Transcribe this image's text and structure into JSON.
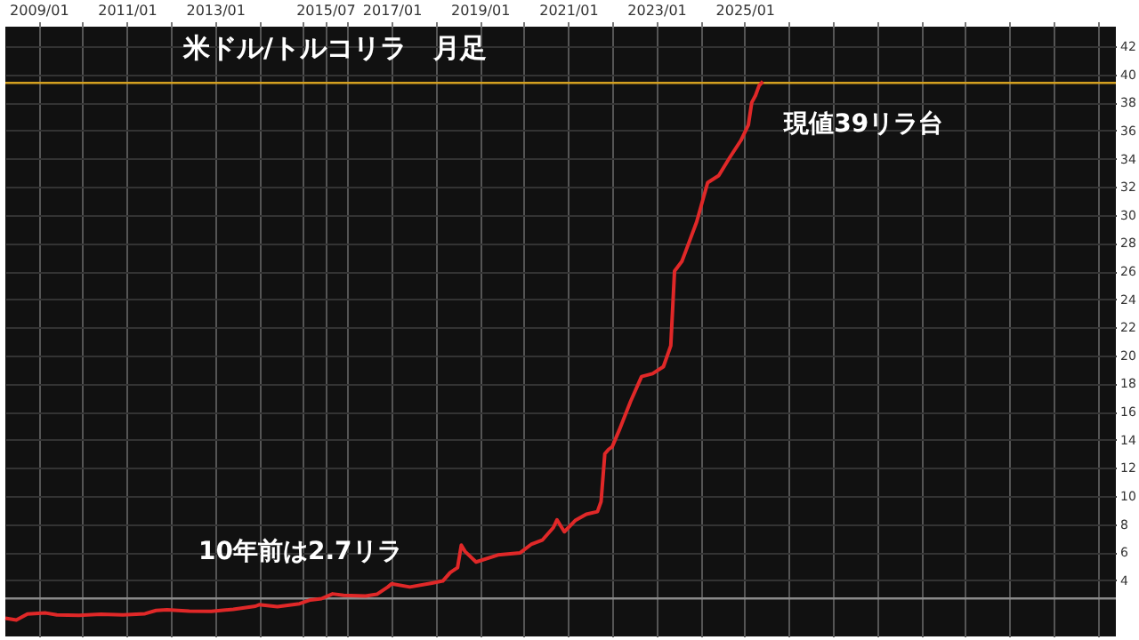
{
  "chart_data": {
    "type": "line",
    "title": "米ドル/トルコリラ　月足",
    "xlim": [
      "2008-04",
      "2033-06"
    ],
    "xticks": [
      {
        "value": "2009-01",
        "label": "2009/01"
      },
      {
        "value": "2010-01",
        "label": null
      },
      {
        "value": "2011-01",
        "label": "2011/01"
      },
      {
        "value": "2012-01",
        "label": null
      },
      {
        "value": "2013-01",
        "label": "2013/01"
      },
      {
        "value": "2014-01",
        "label": null
      },
      {
        "value": "2015-01",
        "label": null
      },
      {
        "value": "2015-07",
        "label": "2015/07"
      },
      {
        "value": "2016-01",
        "label": null
      },
      {
        "value": "2017-01",
        "label": "2017/01"
      },
      {
        "value": "2018-01",
        "label": null
      },
      {
        "value": "2019-01",
        "label": "2019/01"
      },
      {
        "value": "2020-01",
        "label": null
      },
      {
        "value": "2021-01",
        "label": "2021/01"
      },
      {
        "value": "2022-01",
        "label": null
      },
      {
        "value": "2023-01",
        "label": "2023/01"
      },
      {
        "value": "2024-01",
        "label": null
      },
      {
        "value": "2025-01",
        "label": "2025/01"
      },
      {
        "value": "2026-01",
        "label": null
      },
      {
        "value": "2027-01",
        "label": null
      },
      {
        "value": "2028-01",
        "label": null
      },
      {
        "value": "2029-01",
        "label": null
      },
      {
        "value": "2030-01",
        "label": null
      },
      {
        "value": "2031-01",
        "label": null
      },
      {
        "value": "2032-01",
        "label": null
      },
      {
        "value": "2033-01",
        "label": null
      }
    ],
    "ylim": [
      0,
      43.4
    ],
    "yticks": [
      4,
      6,
      8,
      10,
      12,
      14,
      16,
      18,
      20,
      22,
      24,
      26,
      28,
      30,
      32,
      34,
      36,
      38,
      40,
      42
    ],
    "series": [
      {
        "color": "#e02828",
        "x": [
          "2008-04",
          "2008-07",
          "2008-10",
          "2009-01",
          "2009-03",
          "2009-06",
          "2009-12",
          "2010-06",
          "2010-12",
          "2011-06",
          "2011-09",
          "2011-12",
          "2012-06",
          "2012-12",
          "2013-06",
          "2013-12",
          "2014-01",
          "2014-06",
          "2014-12",
          "2015-03",
          "2015-06",
          "2015-09",
          "2015-12",
          "2016-06",
          "2016-09",
          "2016-12",
          "2017-01",
          "2017-06",
          "2017-12",
          "2018-03",
          "2018-05",
          "2018-07",
          "2018-08",
          "2018-09",
          "2018-12",
          "2019-06",
          "2019-12",
          "2020-03",
          "2020-06",
          "2020-09",
          "2020-10",
          "2020-12",
          "2021-03",
          "2021-06",
          "2021-09",
          "2021-10",
          "2021-11",
          "2021-12",
          "2022-01",
          "2022-03",
          "2022-06",
          "2022-09",
          "2022-12",
          "2023-03",
          "2023-05",
          "2023-06",
          "2023-08",
          "2023-09",
          "2023-12",
          "2024-03",
          "2024-06",
          "2024-09",
          "2024-12",
          "2025-02",
          "2025-03",
          "2025-04",
          "2025-05",
          "2025-06"
        ],
        "values": [
          1.3,
          1.17,
          1.6,
          1.65,
          1.67,
          1.54,
          1.5,
          1.58,
          1.54,
          1.62,
          1.85,
          1.9,
          1.81,
          1.78,
          1.93,
          2.15,
          2.26,
          2.12,
          2.33,
          2.6,
          2.69,
          3.03,
          2.92,
          2.88,
          3.0,
          3.52,
          3.75,
          3.52,
          3.8,
          3.95,
          4.55,
          4.9,
          6.5,
          6.05,
          5.3,
          5.8,
          5.95,
          6.55,
          6.85,
          7.75,
          8.3,
          7.45,
          8.25,
          8.7,
          8.88,
          9.6,
          13.0,
          13.3,
          13.5,
          14.7,
          16.7,
          18.5,
          18.7,
          19.2,
          20.7,
          26.0,
          26.7,
          27.4,
          29.5,
          32.3,
          32.8,
          34.1,
          35.3,
          36.4,
          38.0,
          38.5,
          39.2,
          39.5
        ]
      }
    ],
    "ref_lines": [
      {
        "axis": "y",
        "value": 39.4,
        "color": "#d4a020"
      },
      {
        "axis": "y",
        "value": 2.7,
        "color": "#8a8a8a"
      }
    ],
    "annotations": [
      {
        "text": "10年前は2.7リラ",
        "x": "2015-06",
        "y": 2.7
      },
      {
        "text": "現値39リラ台",
        "x": "2025-06",
        "y": 39.5
      }
    ],
    "grid": true,
    "marker": "none",
    "line_style": "solid"
  }
}
